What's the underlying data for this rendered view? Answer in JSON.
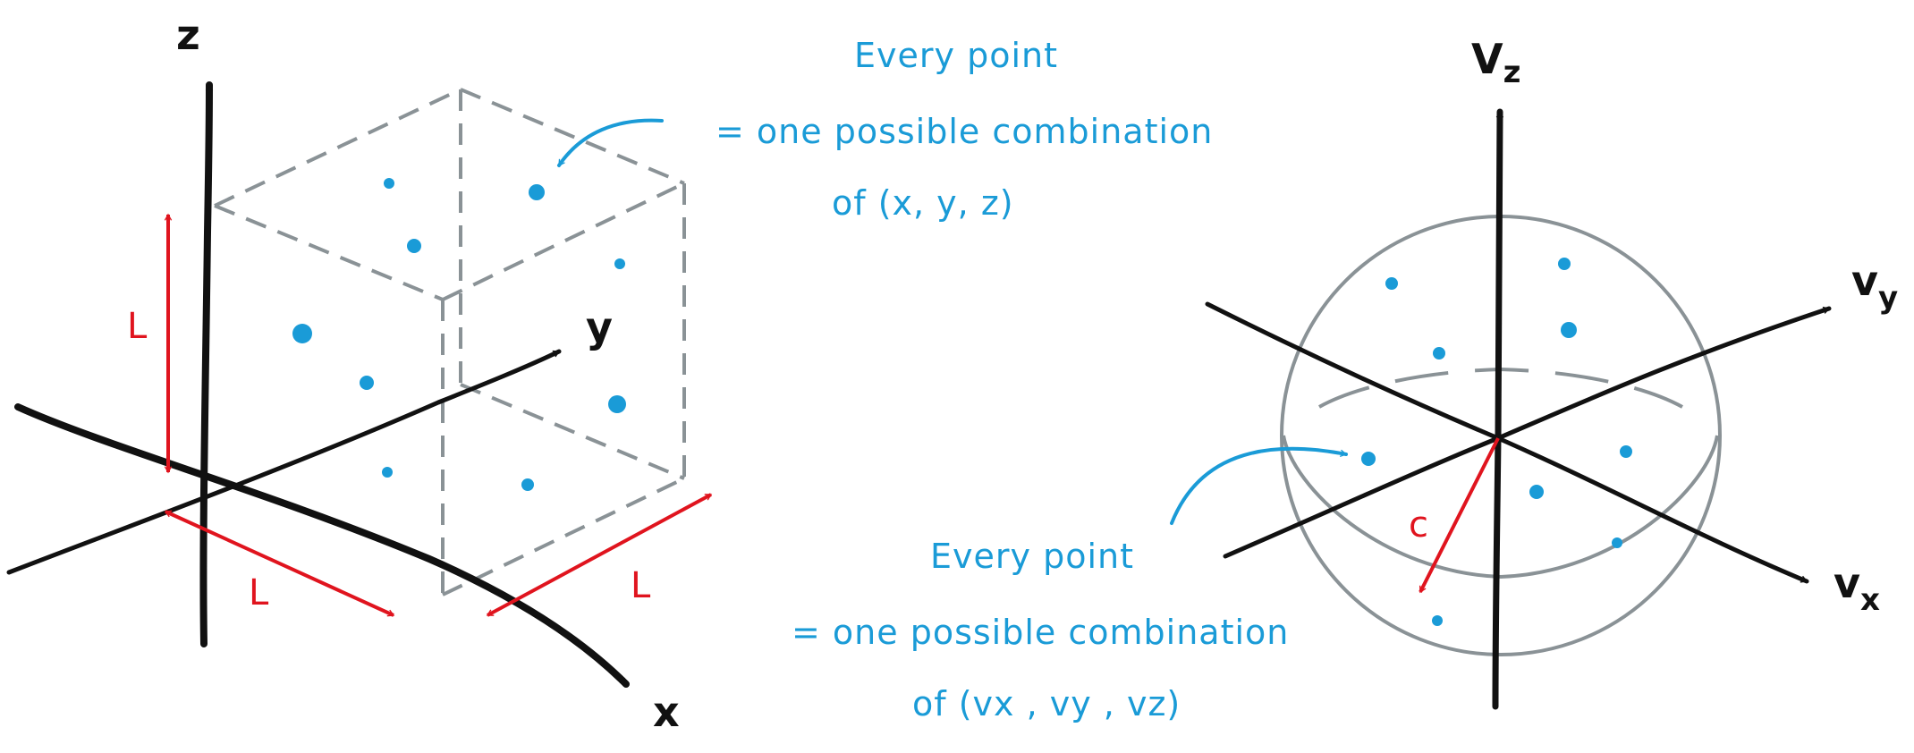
{
  "colors": {
    "ink": "#111111",
    "red": "#e0141e",
    "blue": "#1a9bd7",
    "gray": "#8a9296"
  },
  "left_diagram": {
    "axis_x": "x",
    "axis_y": "y",
    "axis_z": "z",
    "length_label": "L",
    "annotation": {
      "line1": "Every point",
      "line2": "= one possible combination",
      "line3": "of (x, y, z)"
    }
  },
  "right_diagram": {
    "axis_x": "v",
    "axis_x_sub": "x",
    "axis_y": "v",
    "axis_y_sub": "y",
    "axis_z": "V",
    "axis_z_sub": "z",
    "radius_label": "c",
    "annotation": {
      "line1": "Every point",
      "line2": "= one possible combination",
      "line3": "of (vx , vy , vz)"
    }
  }
}
